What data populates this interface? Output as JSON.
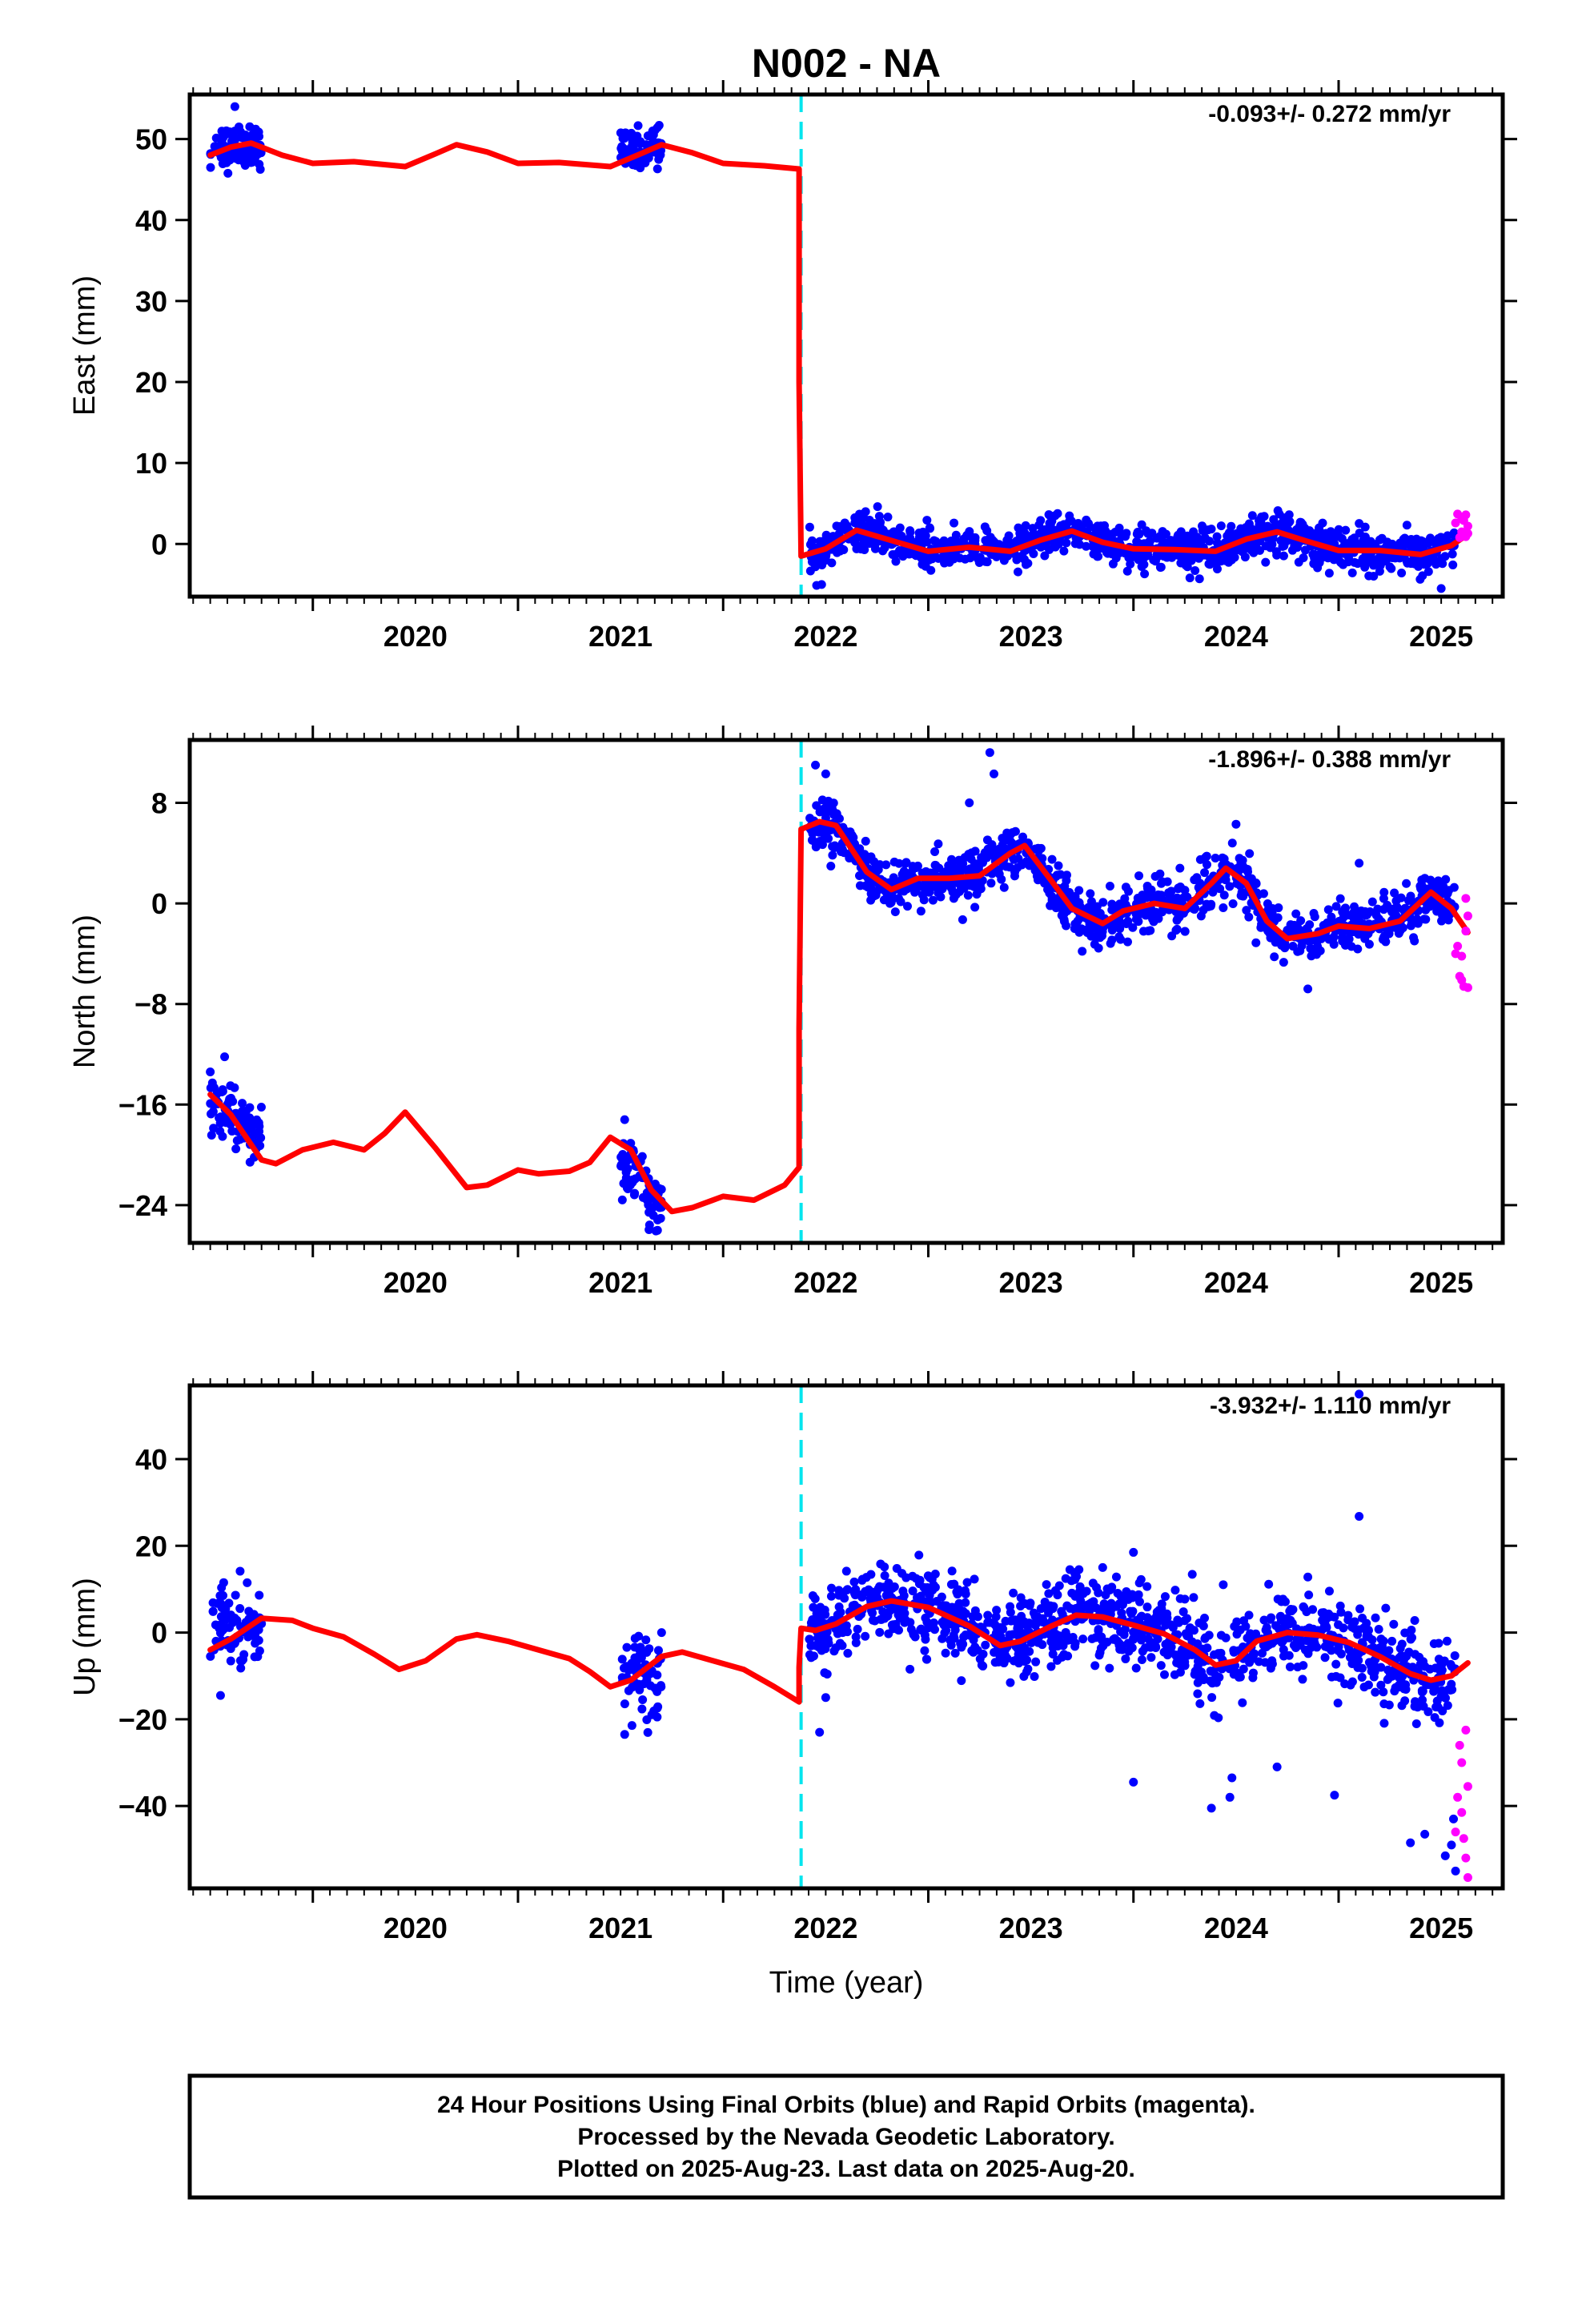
{
  "figure": {
    "title": "N002 - NA",
    "xlabel": "Time (year)",
    "caption": [
      "24 Hour Positions Using Final Orbits (blue) and Rapid Orbits (magenta).",
      "Processed by the Nevada Geodetic Laboratory.",
      "Plotted on 2025-Aug-23. Last data on 2025-Aug-20."
    ],
    "colors": {
      "final_orbits": "#0000ff",
      "rapid_orbits": "#ff00ff",
      "model": "#ff0000",
      "offset_line": "#00e5ee",
      "frame": "#000000"
    }
  },
  "chart_data": [
    {
      "type": "scatter",
      "component": "East",
      "ylabel": "East (mm)",
      "rate": "-0.093+/- 0.272 mm/yr",
      "xlim": [
        2019.4,
        2025.8
      ],
      "ylim": [
        -6.5,
        55.5
      ],
      "x_ticks": [
        2020,
        2021,
        2022,
        2023,
        2024,
        2025
      ],
      "y_ticks": [
        0,
        10,
        20,
        30,
        40,
        50
      ],
      "offset_epoch": 2022.38,
      "model": [
        [
          2019.5,
          48
        ],
        [
          2019.6,
          49
        ],
        [
          2019.7,
          49.5
        ],
        [
          2019.85,
          48
        ],
        [
          2020.0,
          47
        ],
        [
          2020.2,
          47.2
        ],
        [
          2020.45,
          46.6
        ],
        [
          2020.6,
          48.2
        ],
        [
          2020.7,
          49.3
        ],
        [
          2020.85,
          48.4
        ],
        [
          2021.0,
          47.0
        ],
        [
          2021.2,
          47.1
        ],
        [
          2021.45,
          46.6
        ],
        [
          2021.6,
          48.2
        ],
        [
          2021.7,
          49.3
        ],
        [
          2021.85,
          48.3
        ],
        [
          2022.0,
          47.0
        ],
        [
          2022.2,
          46.7
        ],
        [
          2022.37,
          46.3
        ],
        [
          2022.37,
          20
        ],
        [
          2022.38,
          -1.5
        ],
        [
          2022.5,
          -0.6
        ],
        [
          2022.65,
          1.7
        ],
        [
          2022.85,
          0.2
        ],
        [
          2023.0,
          -0.9
        ],
        [
          2023.2,
          -0.4
        ],
        [
          2023.4,
          -0.9
        ],
        [
          2023.55,
          0.5
        ],
        [
          2023.7,
          1.6
        ],
        [
          2023.85,
          0.2
        ],
        [
          2024.0,
          -0.6
        ],
        [
          2024.2,
          -0.7
        ],
        [
          2024.4,
          -0.9
        ],
        [
          2024.55,
          0.6
        ],
        [
          2024.7,
          1.5
        ],
        [
          2024.85,
          0.3
        ],
        [
          2025.0,
          -0.8
        ],
        [
          2025.2,
          -0.8
        ],
        [
          2025.4,
          -1.3
        ],
        [
          2025.55,
          -0.2
        ],
        [
          2025.63,
          1.2
        ]
      ],
      "final_clusters": [
        {
          "x0": 2019.5,
          "x1": 2019.75,
          "ctr": 48.6,
          "amp": 0.6,
          "freq": 6.3,
          "sd": 1.3,
          "n": 90
        },
        {
          "x0": 2021.5,
          "x1": 2021.7,
          "ctr": 48.0,
          "amp": 1.2,
          "freq": 9.0,
          "sd": 1.3,
          "n": 75
        },
        {
          "x0": 2022.42,
          "x1": 2025.57,
          "sd": 1.2,
          "n": 1100,
          "follow": true
        }
      ],
      "final_outliers": [
        [
          2019.62,
          54.0
        ],
        [
          2022.48,
          -5.0
        ],
        [
          2025.5,
          -5.5
        ]
      ],
      "rapid_points": [
        [
          2025.57,
          2.6
        ],
        [
          2025.58,
          3.7
        ],
        [
          2025.59,
          0.8
        ],
        [
          2025.6,
          3.2
        ],
        [
          2025.6,
          1.5
        ],
        [
          2025.61,
          2.9
        ],
        [
          2025.62,
          0.9
        ],
        [
          2025.62,
          3.6
        ],
        [
          2025.63,
          2.2
        ],
        [
          2025.63,
          1.3
        ]
      ]
    },
    {
      "type": "scatter",
      "component": "North",
      "ylabel": "North (mm)",
      "rate": "-1.896+/- 0.388 mm/yr",
      "xlim": [
        2019.4,
        2025.8
      ],
      "ylim": [
        -27,
        13
      ],
      "x_ticks": [
        2020,
        2021,
        2022,
        2023,
        2024,
        2025
      ],
      "y_ticks": [
        8,
        0,
        -8,
        -16,
        -24
      ],
      "y_tick_labels": [
        "8",
        "0",
        "−8",
        "−16",
        "−24"
      ],
      "offset_epoch": 2022.38,
      "model": [
        [
          2019.5,
          -15.2
        ],
        [
          2019.6,
          -16.8
        ],
        [
          2019.75,
          -20.4
        ],
        [
          2019.82,
          -20.7
        ],
        [
          2019.95,
          -19.6
        ],
        [
          2020.1,
          -19.0
        ],
        [
          2020.25,
          -19.6
        ],
        [
          2020.35,
          -18.3
        ],
        [
          2020.45,
          -16.6
        ],
        [
          2020.6,
          -19.5
        ],
        [
          2020.75,
          -22.6
        ],
        [
          2020.85,
          -22.4
        ],
        [
          2021.0,
          -21.2
        ],
        [
          2021.1,
          -21.5
        ],
        [
          2021.25,
          -21.3
        ],
        [
          2021.35,
          -20.6
        ],
        [
          2021.45,
          -18.6
        ],
        [
          2021.55,
          -19.6
        ],
        [
          2021.65,
          -22.8
        ],
        [
          2021.75,
          -24.5
        ],
        [
          2021.85,
          -24.2
        ],
        [
          2022.0,
          -23.3
        ],
        [
          2022.15,
          -23.6
        ],
        [
          2022.3,
          -22.4
        ],
        [
          2022.37,
          -21.0
        ],
        [
          2022.37,
          -10
        ],
        [
          2022.38,
          5.9
        ],
        [
          2022.47,
          6.5
        ],
        [
          2022.55,
          6.2
        ],
        [
          2022.7,
          2.5
        ],
        [
          2022.82,
          1.1
        ],
        [
          2022.95,
          2.0
        ],
        [
          2023.1,
          2.0
        ],
        [
          2023.25,
          2.2
        ],
        [
          2023.4,
          4.0
        ],
        [
          2023.47,
          4.6
        ],
        [
          2023.6,
          1.8
        ],
        [
          2023.7,
          -0.4
        ],
        [
          2023.85,
          -1.6
        ],
        [
          2023.95,
          -0.6
        ],
        [
          2024.1,
          0.0
        ],
        [
          2024.25,
          -0.4
        ],
        [
          2024.38,
          1.6
        ],
        [
          2024.45,
          2.8
        ],
        [
          2024.55,
          1.6
        ],
        [
          2024.65,
          -1.4
        ],
        [
          2024.75,
          -2.8
        ],
        [
          2024.9,
          -2.4
        ],
        [
          2025.0,
          -1.8
        ],
        [
          2025.15,
          -2.0
        ],
        [
          2025.3,
          -1.4
        ],
        [
          2025.45,
          0.9
        ],
        [
          2025.55,
          -0.4
        ],
        [
          2025.63,
          -2.3
        ]
      ],
      "final_clusters": [
        {
          "x0": 2019.5,
          "x1": 2019.75,
          "ctr": -17.2,
          "amp": 0,
          "freq": 0,
          "sd": 1.1,
          "n": 90,
          "trend": -11
        },
        {
          "x0": 2021.5,
          "x1": 2021.7,
          "ctr": -22.3,
          "amp": 0,
          "freq": 0,
          "sd": 1.1,
          "n": 75,
          "trend": -20
        },
        {
          "x0": 2022.42,
          "x1": 2025.57,
          "sd": 1.0,
          "n": 1100,
          "follow": true
        }
      ],
      "final_outliers": [
        [
          2019.57,
          -12.2
        ],
        [
          2019.5,
          -13.4
        ],
        [
          2021.52,
          -17.2
        ],
        [
          2021.68,
          -26.0
        ],
        [
          2022.45,
          11.0
        ],
        [
          2022.5,
          10.3
        ],
        [
          2023.3,
          12.0
        ],
        [
          2023.32,
          10.3
        ],
        [
          2023.2,
          8.0
        ],
        [
          2024.5,
          6.3
        ],
        [
          2024.85,
          -6.8
        ],
        [
          2025.1,
          3.2
        ],
        [
          2025.42,
          2.0
        ]
      ],
      "rapid_points": [
        [
          2025.57,
          -4.0
        ],
        [
          2025.58,
          -3.4
        ],
        [
          2025.59,
          -5.8
        ],
        [
          2025.6,
          -6.1
        ],
        [
          2025.6,
          -4.2
        ],
        [
          2025.61,
          -6.6
        ],
        [
          2025.62,
          0.4
        ],
        [
          2025.62,
          -2.2
        ],
        [
          2025.63,
          -1.0
        ],
        [
          2025.63,
          -6.7
        ]
      ]
    },
    {
      "type": "scatter",
      "component": "Up",
      "ylabel": "Up (mm)",
      "rate": "-3.932+/- 1.110 mm/yr",
      "xlim": [
        2019.4,
        2025.8
      ],
      "ylim": [
        -59,
        57
      ],
      "x_ticks": [
        2020,
        2021,
        2022,
        2023,
        2024,
        2025
      ],
      "y_ticks": [
        40,
        20,
        0,
        -20,
        -40
      ],
      "y_tick_labels": [
        "40",
        "20",
        "0",
        "−20",
        "−40"
      ],
      "offset_epoch": 2022.38,
      "model": [
        [
          2019.5,
          -4.0
        ],
        [
          2019.6,
          -1.5
        ],
        [
          2019.75,
          3.3
        ],
        [
          2019.9,
          2.8
        ],
        [
          2020.0,
          1.0
        ],
        [
          2020.15,
          -1.0
        ],
        [
          2020.3,
          -5.0
        ],
        [
          2020.42,
          -8.5
        ],
        [
          2020.55,
          -6.5
        ],
        [
          2020.7,
          -1.5
        ],
        [
          2020.8,
          -0.5
        ],
        [
          2020.95,
          -2.0
        ],
        [
          2021.1,
          -4.0
        ],
        [
          2021.25,
          -6.0
        ],
        [
          2021.35,
          -9.0
        ],
        [
          2021.45,
          -12.5
        ],
        [
          2021.55,
          -11.0
        ],
        [
          2021.7,
          -5.5
        ],
        [
          2021.8,
          -4.5
        ],
        [
          2021.95,
          -6.5
        ],
        [
          2022.1,
          -8.5
        ],
        [
          2022.25,
          -12.5
        ],
        [
          2022.37,
          -16.0
        ],
        [
          2022.37,
          -8
        ],
        [
          2022.38,
          1.0
        ],
        [
          2022.45,
          0.5
        ],
        [
          2022.55,
          2.0
        ],
        [
          2022.7,
          6.0
        ],
        [
          2022.82,
          7.3
        ],
        [
          2023.0,
          5.8
        ],
        [
          2023.2,
          1.5
        ],
        [
          2023.35,
          -3.0
        ],
        [
          2023.45,
          -2.0
        ],
        [
          2023.6,
          1.5
        ],
        [
          2023.72,
          4.0
        ],
        [
          2023.85,
          3.6
        ],
        [
          2024.0,
          1.7
        ],
        [
          2024.15,
          -0.3
        ],
        [
          2024.3,
          -4.0
        ],
        [
          2024.4,
          -7.5
        ],
        [
          2024.5,
          -6.5
        ],
        [
          2024.6,
          -2.0
        ],
        [
          2024.75,
          0.0
        ],
        [
          2024.9,
          -0.6
        ],
        [
          2025.05,
          -2.3
        ],
        [
          2025.2,
          -5.5
        ],
        [
          2025.35,
          -9.5
        ],
        [
          2025.45,
          -11.0
        ],
        [
          2025.55,
          -10.0
        ],
        [
          2025.63,
          -7.0
        ]
      ],
      "final_clusters": [
        {
          "x0": 2019.5,
          "x1": 2019.75,
          "ctr": 1.0,
          "amp": 0,
          "freq": 0,
          "sd": 5.0,
          "n": 80
        },
        {
          "x0": 2021.5,
          "x1": 2021.7,
          "ctr": -9.5,
          "amp": 0,
          "freq": 0,
          "sd": 4.5,
          "n": 65
        },
        {
          "x0": 2022.42,
          "x1": 2025.57,
          "sd": 4.8,
          "n": 1100,
          "follow": true
        }
      ],
      "final_outliers": [
        [
          2019.55,
          -14.5
        ],
        [
          2019.68,
          11.5
        ],
        [
          2021.52,
          -23.5
        ],
        [
          2022.47,
          -23.0
        ],
        [
          2022.5,
          -15.0
        ],
        [
          2024.0,
          -34.5
        ],
        [
          2024.38,
          -40.5
        ],
        [
          2024.48,
          -33.5
        ],
        [
          2024.47,
          -38.0
        ],
        [
          2024.7,
          -31.0
        ],
        [
          2024.98,
          -37.5
        ],
        [
          2025.1,
          26.8
        ],
        [
          2025.1,
          55.0
        ],
        [
          2025.35,
          -48.5
        ],
        [
          2025.42,
          -46.5
        ],
        [
          2025.52,
          -51.5
        ],
        [
          2025.55,
          -49.0
        ],
        [
          2025.56,
          -43.0
        ],
        [
          2025.57,
          -55.0
        ],
        [
          2024.85,
          12.8
        ],
        [
          2024.0,
          18.5
        ],
        [
          2023.85,
          15.0
        ]
      ],
      "rapid_points": [
        [
          2025.57,
          -46.0
        ],
        [
          2025.58,
          -38.0
        ],
        [
          2025.59,
          -26.0
        ],
        [
          2025.6,
          -41.5
        ],
        [
          2025.6,
          -30.0
        ],
        [
          2025.61,
          -47.5
        ],
        [
          2025.62,
          -22.5
        ],
        [
          2025.62,
          -52.0
        ],
        [
          2025.63,
          -35.5
        ],
        [
          2025.63,
          -56.5
        ]
      ]
    }
  ]
}
